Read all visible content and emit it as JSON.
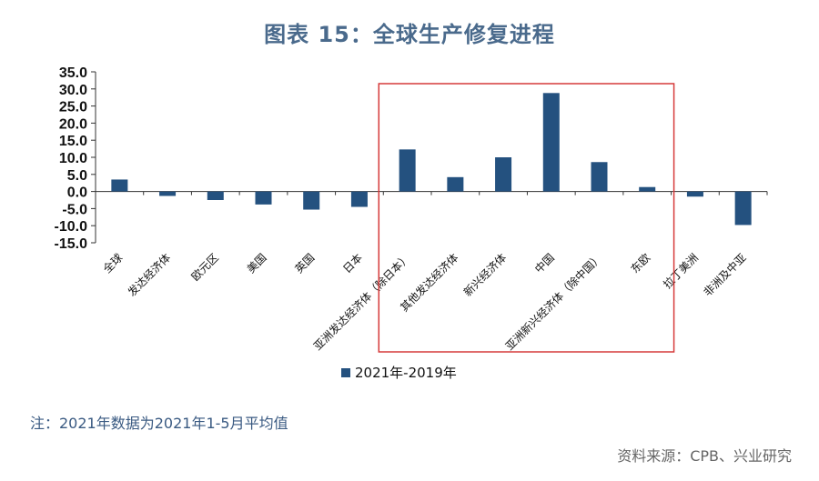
{
  "title": "图表 15：全球生产修复进程",
  "note": "注：2021年数据为2021年1-5月平均值",
  "source": "资料来源：CPB、兴业研究",
  "colors": {
    "bar": "#24517f",
    "highlight_box": "#d63a3a",
    "axis": "#333333"
  },
  "chart_data": {
    "type": "bar",
    "categories": [
      "全球",
      "发达经济体",
      "欧元区",
      "美国",
      "英国",
      "日本",
      "亚洲发达经济体（除日本）",
      "其他发达经济体",
      "新兴经济体",
      "中国",
      "亚洲新兴经济体（除中国）",
      "东欧",
      "拉丁美洲",
      "非洲及中亚"
    ],
    "series": [
      {
        "name": "2021年-2019年",
        "values": [
          3.5,
          -1.3,
          -2.5,
          -3.8,
          -5.3,
          -4.5,
          12.3,
          4.2,
          10.0,
          28.8,
          8.6,
          1.3,
          -1.5,
          -9.8
        ]
      }
    ],
    "ylim": [
      -15,
      35
    ],
    "yticks": [
      "35.0",
      "30.0",
      "25.0",
      "20.0",
      "15.0",
      "10.0",
      "5.0",
      "0.0",
      "-5.0",
      "-10.0",
      "-15.0"
    ],
    "xlabel": "",
    "ylabel": "",
    "legend_position": "bottom-center",
    "highlight_range": [
      "亚洲发达经济体（除日本）",
      "东欧"
    ]
  }
}
